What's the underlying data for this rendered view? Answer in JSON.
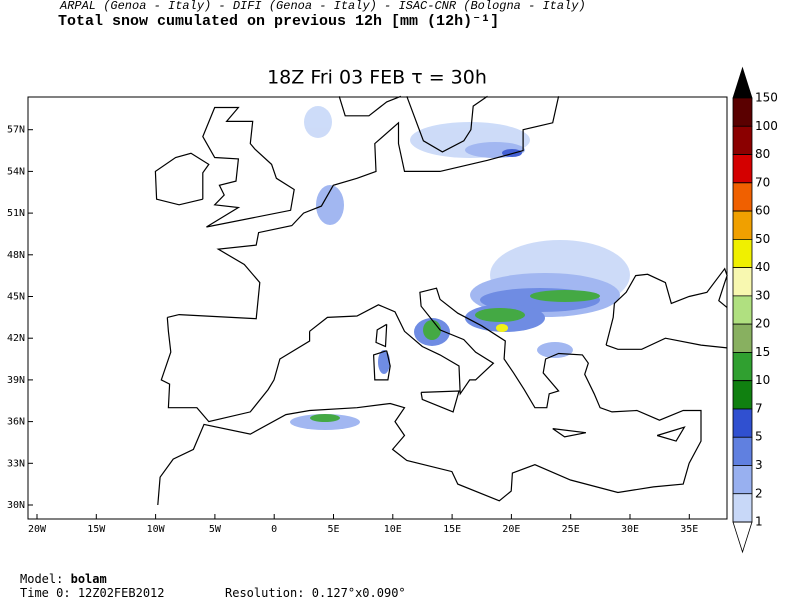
{
  "header": {
    "credits": "ARPAL (Genoa - Italy)  -  DIFI (Genoa - Italy)  -  ISAC-CNR (Bologna - Italy)",
    "title": "Total snow cumulated on previous 12h [mm (12h)⁻¹]"
  },
  "map": {
    "title": "18Z Fri 03 FEB  τ = 30h",
    "lat_labels": [
      "30N",
      "33N",
      "36N",
      "39N",
      "42N",
      "45N",
      "48N",
      "51N",
      "54N",
      "57N"
    ],
    "lon_labels": [
      "20W",
      "15W",
      "10W",
      "5W",
      "0",
      "5E",
      "10E",
      "15E",
      "20E",
      "25E",
      "30E",
      "35E"
    ]
  },
  "colorbar": {
    "labels": [
      "150",
      "100",
      "80",
      "70",
      "60",
      "50",
      "40",
      "30",
      "20",
      "15",
      "10",
      "7",
      "5",
      "3",
      "2",
      "1"
    ],
    "colors": [
      "#000000",
      "#5a0000",
      "#8b0000",
      "#d40000",
      "#f06000",
      "#f0a000",
      "#f0f000",
      "#f8f8b0",
      "#b0e080",
      "#88b060",
      "#30a030",
      "#108010",
      "#3050d0",
      "#6080e0",
      "#98b0f0",
      "#c8d8f8",
      "#ffffff"
    ]
  },
  "footer": {
    "model_label": "Model:",
    "model": "bolam",
    "time_label": "Time 0:",
    "time": "12Z02FEB2012",
    "resolution_label": "Resolution:",
    "resolution": "0.127°x0.090°"
  }
}
